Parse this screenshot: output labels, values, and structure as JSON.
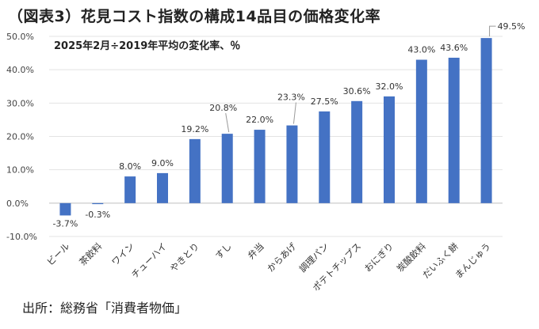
{
  "chart_data": {
    "type": "bar",
    "title": "（図表3）花見コスト指数の構成14品目の価格変化率",
    "subtitle": "2025年2月÷2019年平均の変化率、％",
    "xlabel": "",
    "ylabel": "",
    "ylim": [
      -10,
      50
    ],
    "yticks": [
      -10,
      0,
      10,
      20,
      30,
      40,
      50
    ],
    "ytick_labels": [
      "-10.0%",
      "0.0%",
      "10.0%",
      "20.0%",
      "30.0%",
      "40.0%",
      "50.0%"
    ],
    "grid": "horizontal",
    "bar_color": "#4472C4",
    "categories": [
      "ビール",
      "茶飲料",
      "ワイン",
      "チューハイ",
      "やきとり",
      "すし",
      "弁当",
      "からあげ",
      "調理パン",
      "ポテトチップス",
      "おにぎり",
      "炭酸飲料",
      "だいふく餅",
      "まんじゅう"
    ],
    "values": [
      -3.7,
      -0.3,
      8.0,
      9.0,
      19.2,
      20.8,
      22.0,
      23.3,
      27.5,
      30.6,
      32.0,
      43.0,
      43.6,
      49.5
    ],
    "data_labels": [
      "-3.7%",
      "-0.3%",
      "8.0%",
      "9.0%",
      "19.2%",
      "20.8%",
      "22.0%",
      "23.3%",
      "27.5%",
      "30.6%",
      "32.0%",
      "43.0%",
      "43.6%",
      "49.5%"
    ],
    "source": "出所：総務省「消費者物価」"
  }
}
